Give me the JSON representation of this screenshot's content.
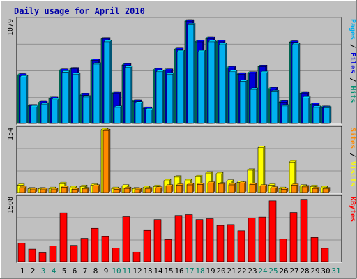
{
  "title": "Daily usage for April 2010",
  "colors": {
    "frame_bg": "#c0c0c0",
    "plot_bg": "#c0c0c0",
    "title": "#0000a8",
    "hits": "#008f6f",
    "files": "#0000d8",
    "pages": "#00b0f0",
    "visits": "#ffff00",
    "sites": "#ff8800",
    "kbytes": "#ff0000",
    "weekend_label": "#00806b"
  },
  "chart_data": [
    {
      "type": "bar",
      "panel": "top",
      "ymax_label": "1079",
      "ylim": [
        0,
        1079
      ],
      "right_labels": [
        {
          "text": "Hits",
          "color": "#008f6f"
        },
        {
          "text": "Files",
          "color": "#0000d8"
        },
        {
          "text": "Pages",
          "color": "#00b0f0"
        }
      ],
      "categories": [
        "1",
        "2",
        "3",
        "4",
        "5",
        "6",
        "7",
        "8",
        "9",
        "10",
        "11",
        "12",
        "13",
        "14",
        "15",
        "16",
        "17",
        "18",
        "19",
        "20",
        "21",
        "22",
        "23",
        "24",
        "25",
        "26",
        "27",
        "28",
        "29",
        "30",
        "31"
      ],
      "series": [
        {
          "name": "Hits",
          "values": [
            510,
            185,
            220,
            265,
            560,
            575,
            300,
            665,
            890,
            315,
            615,
            235,
            160,
            565,
            560,
            780,
            1079,
            860,
            895,
            860,
            585,
            520,
            530,
            600,
            365,
            225,
            855,
            315,
            200,
            170,
            0
          ]
        },
        {
          "name": "Files",
          "values": [
            510,
            185,
            220,
            265,
            560,
            575,
            300,
            665,
            890,
            315,
            615,
            235,
            160,
            565,
            560,
            780,
            1079,
            860,
            895,
            860,
            585,
            520,
            530,
            600,
            365,
            225,
            855,
            315,
            200,
            170,
            0
          ]
        },
        {
          "name": "Pages",
          "values": [
            490,
            175,
            205,
            250,
            540,
            520,
            280,
            625,
            860,
            170,
            590,
            215,
            145,
            545,
            520,
            755,
            1040,
            755,
            860,
            830,
            545,
            445,
            360,
            535,
            335,
            185,
            830,
            270,
            170,
            165,
            0
          ]
        }
      ]
    },
    {
      "type": "bar",
      "panel": "middle",
      "ymax_label": "154",
      "ylim": [
        0,
        154
      ],
      "right_labels": [
        {
          "text": "Visits",
          "color": "#ffff00"
        },
        {
          "text": "Sites",
          "color": "#ff8800"
        }
      ],
      "categories": [
        "1",
        "2",
        "3",
        "4",
        "5",
        "6",
        "7",
        "8",
        "9",
        "10",
        "11",
        "12",
        "13",
        "14",
        "15",
        "16",
        "17",
        "18",
        "19",
        "20",
        "21",
        "22",
        "23",
        "24",
        "25",
        "26",
        "27",
        "28",
        "29",
        "30",
        "31"
      ],
      "series": [
        {
          "name": "Visits",
          "values": [
            18,
            9,
            9,
            10,
            22,
            12,
            15,
            18,
            154,
            10,
            16,
            9,
            12,
            15,
            29,
            38,
            29,
            39,
            48,
            46,
            28,
            25,
            55,
            110,
            18,
            10,
            75,
            16,
            15,
            12,
            0
          ]
        },
        {
          "name": "Sites",
          "values": [
            12,
            7,
            7,
            7,
            13,
            8,
            9,
            16,
            152,
            8,
            10,
            7,
            9,
            11,
            16,
            18,
            19,
            20,
            23,
            21,
            19,
            23,
            20,
            16,
            11,
            8,
            18,
            14,
            10,
            9,
            0
          ]
        }
      ]
    },
    {
      "type": "bar",
      "panel": "bottom",
      "ymax_label": "1508",
      "ylim": [
        0,
        1508
      ],
      "right_labels": [
        {
          "text": "KBytes",
          "color": "#ff0000"
        }
      ],
      "categories": [
        "1",
        "2",
        "3",
        "4",
        "5",
        "6",
        "7",
        "8",
        "9",
        "10",
        "11",
        "12",
        "13",
        "14",
        "15",
        "16",
        "17",
        "18",
        "19",
        "20",
        "21",
        "22",
        "23",
        "24",
        "25",
        "26",
        "27",
        "28",
        "29",
        "30",
        "31"
      ],
      "series": [
        {
          "name": "KBytes",
          "values": [
            440,
            300,
            210,
            380,
            1170,
            390,
            560,
            800,
            600,
            330,
            1080,
            230,
            750,
            1010,
            530,
            1110,
            1130,
            1010,
            1030,
            870,
            890,
            740,
            1050,
            1070,
            1460,
            540,
            1180,
            1480,
            580,
            320,
            0
          ]
        }
      ]
    }
  ],
  "x_labels": [
    {
      "text": "1",
      "weekend": false
    },
    {
      "text": "2",
      "weekend": false
    },
    {
      "text": "3",
      "weekend": true
    },
    {
      "text": "4",
      "weekend": true
    },
    {
      "text": "5",
      "weekend": false
    },
    {
      "text": "6",
      "weekend": false
    },
    {
      "text": "7",
      "weekend": false
    },
    {
      "text": "8",
      "weekend": false
    },
    {
      "text": "9",
      "weekend": false
    },
    {
      "text": "10",
      "weekend": true
    },
    {
      "text": "11",
      "weekend": true
    },
    {
      "text": "12",
      "weekend": false
    },
    {
      "text": "13",
      "weekend": false
    },
    {
      "text": "14",
      "weekend": false
    },
    {
      "text": "15",
      "weekend": false
    },
    {
      "text": "16",
      "weekend": false
    },
    {
      "text": "17",
      "weekend": true
    },
    {
      "text": "18",
      "weekend": true
    },
    {
      "text": "19",
      "weekend": false
    },
    {
      "text": "20",
      "weekend": false
    },
    {
      "text": "21",
      "weekend": false
    },
    {
      "text": "22",
      "weekend": false
    },
    {
      "text": "23",
      "weekend": false
    },
    {
      "text": "24",
      "weekend": true
    },
    {
      "text": "25",
      "weekend": true
    },
    {
      "text": "26",
      "weekend": false
    },
    {
      "text": "27",
      "weekend": false
    },
    {
      "text": "28",
      "weekend": false
    },
    {
      "text": "29",
      "weekend": false
    },
    {
      "text": "30",
      "weekend": false
    },
    {
      "text": "31",
      "weekend": true
    }
  ]
}
